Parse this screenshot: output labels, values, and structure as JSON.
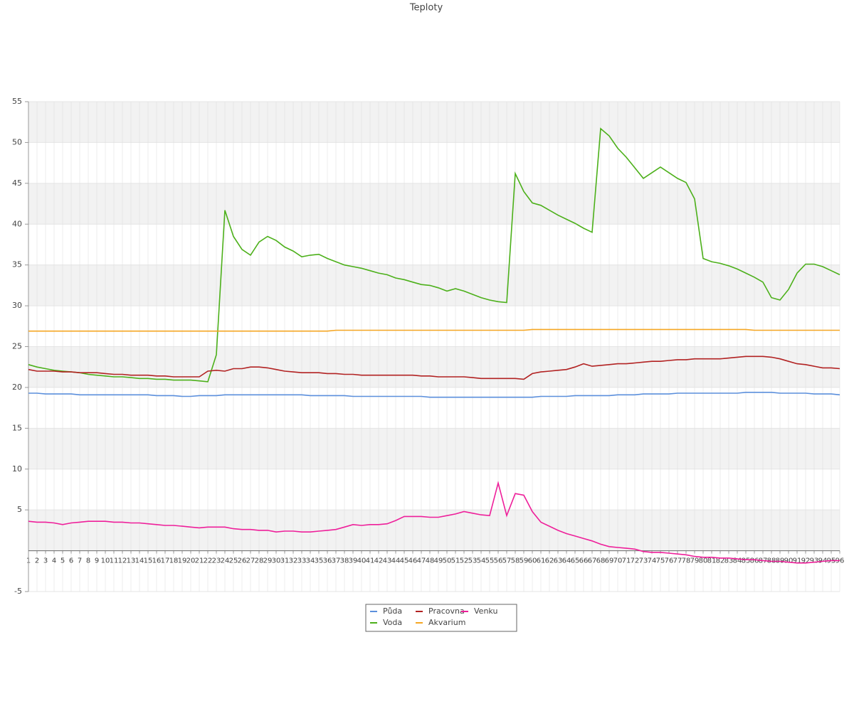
{
  "chart_data": {
    "type": "line",
    "title": "Teploty",
    "categories": [
      1,
      2,
      3,
      4,
      5,
      6,
      7,
      8,
      9,
      10,
      11,
      12,
      13,
      14,
      15,
      16,
      17,
      18,
      19,
      20,
      21,
      22,
      23,
      24,
      25,
      26,
      27,
      28,
      29,
      30,
      31,
      32,
      33,
      34,
      35,
      36,
      37,
      38,
      39,
      40,
      41,
      42,
      43,
      44,
      45,
      46,
      47,
      48,
      49,
      50,
      51,
      52,
      53,
      54,
      55,
      56,
      57,
      58,
      59,
      60,
      61,
      62,
      63,
      64,
      65,
      66,
      67,
      68,
      69,
      70,
      71,
      72,
      73,
      74,
      75,
      76,
      77,
      78,
      79,
      80,
      81,
      82,
      83,
      84,
      85,
      86,
      87,
      88,
      89,
      90,
      91,
      92,
      93,
      94,
      95,
      96
    ],
    "series": [
      {
        "name": "Půda",
        "color": "#5b8fdc",
        "values": [
          19.3,
          19.3,
          19.2,
          19.2,
          19.2,
          19.2,
          19.1,
          19.1,
          19.1,
          19.1,
          19.1,
          19.1,
          19.1,
          19.1,
          19.1,
          19.0,
          19.0,
          19.0,
          18.9,
          18.9,
          19.0,
          19.0,
          19.0,
          19.1,
          19.1,
          19.1,
          19.1,
          19.1,
          19.1,
          19.1,
          19.1,
          19.1,
          19.1,
          19.0,
          19.0,
          19.0,
          19.0,
          19.0,
          18.9,
          18.9,
          18.9,
          18.9,
          18.9,
          18.9,
          18.9,
          18.9,
          18.9,
          18.8,
          18.8,
          18.8,
          18.8,
          18.8,
          18.8,
          18.8,
          18.8,
          18.8,
          18.8,
          18.8,
          18.8,
          18.8,
          18.9,
          18.9,
          18.9,
          18.9,
          19.0,
          19.0,
          19.0,
          19.0,
          19.0,
          19.1,
          19.1,
          19.1,
          19.2,
          19.2,
          19.2,
          19.2,
          19.3,
          19.3,
          19.3,
          19.3,
          19.3,
          19.3,
          19.3,
          19.3,
          19.4,
          19.4,
          19.4,
          19.4,
          19.3,
          19.3,
          19.3,
          19.3,
          19.2,
          19.2,
          19.2,
          19.1
        ]
      },
      {
        "name": "Voda",
        "color": "#4cb01a",
        "values": [
          22.8,
          22.5,
          22.3,
          22.1,
          22.0,
          21.9,
          21.8,
          21.6,
          21.5,
          21.4,
          21.3,
          21.3,
          21.2,
          21.1,
          21.1,
          21.0,
          21.0,
          20.9,
          20.9,
          20.9,
          20.8,
          20.7,
          24.0,
          41.7,
          38.5,
          36.9,
          36.2,
          37.8,
          38.5,
          38.0,
          37.2,
          36.7,
          36.0,
          36.2,
          36.3,
          35.8,
          35.4,
          35.0,
          34.8,
          34.6,
          34.3,
          34.0,
          33.8,
          33.4,
          33.2,
          32.9,
          32.6,
          32.5,
          32.2,
          31.8,
          32.1,
          31.8,
          31.4,
          31.0,
          30.7,
          30.5,
          30.4,
          46.2,
          44.0,
          42.6,
          42.3,
          41.7,
          41.1,
          40.6,
          40.1,
          39.5,
          39.0,
          51.7,
          50.8,
          49.3,
          48.2,
          46.9,
          45.6,
          46.3,
          47.0,
          46.3,
          45.6,
          45.1,
          43.1,
          35.8,
          35.4,
          35.2,
          34.9,
          34.5,
          34.0,
          33.5,
          32.9,
          31.0,
          30.7,
          32.0,
          34.0,
          35.1,
          35.1,
          34.8,
          34.3,
          33.8
        ]
      },
      {
        "name": "Pracovna",
        "color": "#b22222",
        "values": [
          22.2,
          22.0,
          22.0,
          22.0,
          21.9,
          21.9,
          21.8,
          21.8,
          21.8,
          21.7,
          21.6,
          21.6,
          21.5,
          21.5,
          21.5,
          21.4,
          21.4,
          21.3,
          21.3,
          21.3,
          21.3,
          22.0,
          22.1,
          22.0,
          22.3,
          22.3,
          22.5,
          22.5,
          22.4,
          22.2,
          22.0,
          21.9,
          21.8,
          21.8,
          21.8,
          21.7,
          21.7,
          21.6,
          21.6,
          21.5,
          21.5,
          21.5,
          21.5,
          21.5,
          21.5,
          21.5,
          21.4,
          21.4,
          21.3,
          21.3,
          21.3,
          21.3,
          21.2,
          21.1,
          21.1,
          21.1,
          21.1,
          21.1,
          21.0,
          21.7,
          21.9,
          22.0,
          22.1,
          22.2,
          22.5,
          22.9,
          22.6,
          22.7,
          22.8,
          22.9,
          22.9,
          23.0,
          23.1,
          23.2,
          23.2,
          23.3,
          23.4,
          23.4,
          23.5,
          23.5,
          23.5,
          23.5,
          23.6,
          23.7,
          23.8,
          23.8,
          23.8,
          23.7,
          23.5,
          23.2,
          22.9,
          22.8,
          22.6,
          22.4,
          22.4,
          22.3
        ]
      },
      {
        "name": "Akvarium",
        "color": "#f5a623",
        "values": [
          26.9,
          26.9,
          26.9,
          26.9,
          26.9,
          26.9,
          26.9,
          26.9,
          26.9,
          26.9,
          26.9,
          26.9,
          26.9,
          26.9,
          26.9,
          26.9,
          26.9,
          26.9,
          26.9,
          26.9,
          26.9,
          26.9,
          26.9,
          26.9,
          26.9,
          26.9,
          26.9,
          26.9,
          26.9,
          26.9,
          26.9,
          26.9,
          26.9,
          26.9,
          26.9,
          26.9,
          27.0,
          27.0,
          27.0,
          27.0,
          27.0,
          27.0,
          27.0,
          27.0,
          27.0,
          27.0,
          27.0,
          27.0,
          27.0,
          27.0,
          27.0,
          27.0,
          27.0,
          27.0,
          27.0,
          27.0,
          27.0,
          27.0,
          27.0,
          27.1,
          27.1,
          27.1,
          27.1,
          27.1,
          27.1,
          27.1,
          27.1,
          27.1,
          27.1,
          27.1,
          27.1,
          27.1,
          27.1,
          27.1,
          27.1,
          27.1,
          27.1,
          27.1,
          27.1,
          27.1,
          27.1,
          27.1,
          27.1,
          27.1,
          27.1,
          27.0,
          27.0,
          27.0,
          27.0,
          27.0,
          27.0,
          27.0,
          27.0,
          27.0,
          27.0,
          27.0
        ]
      },
      {
        "name": "Venku",
        "color": "#ee1f9a",
        "values": [
          3.6,
          3.5,
          3.5,
          3.4,
          3.2,
          3.4,
          3.5,
          3.6,
          3.6,
          3.6,
          3.5,
          3.5,
          3.4,
          3.4,
          3.3,
          3.2,
          3.1,
          3.1,
          3.0,
          2.9,
          2.8,
          2.9,
          2.9,
          2.9,
          2.7,
          2.6,
          2.6,
          2.5,
          2.5,
          2.3,
          2.4,
          2.4,
          2.3,
          2.3,
          2.4,
          2.5,
          2.6,
          2.9,
          3.2,
          3.1,
          3.2,
          3.2,
          3.3,
          3.7,
          4.2,
          4.2,
          4.2,
          4.1,
          4.1,
          4.3,
          4.5,
          4.8,
          4.6,
          4.4,
          4.3,
          8.3,
          4.3,
          7.0,
          6.8,
          4.8,
          3.5,
          3.0,
          2.5,
          2.1,
          1.8,
          1.5,
          1.2,
          0.8,
          0.5,
          0.4,
          0.3,
          0.2,
          -0.1,
          -0.2,
          -0.2,
          -0.3,
          -0.4,
          -0.5,
          -0.7,
          -0.8,
          -0.8,
          -0.9,
          -0.9,
          -1.0,
          -1.1,
          -1.1,
          -1.2,
          -1.3,
          -1.3,
          -1.4,
          -1.5,
          -1.5,
          -1.4,
          -1.3,
          -1.2,
          -1.2
        ]
      }
    ],
    "ylim": [
      -5,
      55
    ],
    "yticks": [
      -5,
      5,
      10,
      15,
      20,
      25,
      30,
      35,
      40,
      45,
      50,
      55
    ],
    "grid": true,
    "legend": "bottom"
  }
}
